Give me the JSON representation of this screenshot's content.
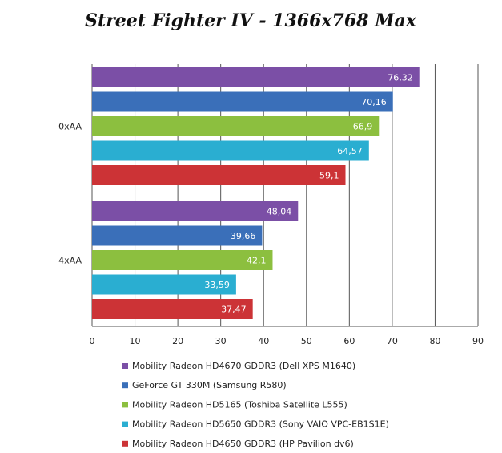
{
  "chart_data": {
    "type": "bar",
    "orientation": "horizontal",
    "title": "Street Fighter IV - 1366x768 Max",
    "categories": [
      "0xAA",
      "4xAA"
    ],
    "series": [
      {
        "name": "Mobility Radeon HD4670 GDDR3 (Dell XPS M1640)",
        "color": "#7b4fa6",
        "values": [
          76.32,
          48.04
        ],
        "labels": [
          "76,32",
          "48,04"
        ]
      },
      {
        "name": "GeForce GT 330M (Samsung R580)",
        "color": "#3a6fb9",
        "values": [
          70.16,
          39.66
        ],
        "labels": [
          "70,16",
          "39,66"
        ]
      },
      {
        "name": "Mobility Radeon HD5165 (Toshiba Satellite L555)",
        "color": "#8cbf3f",
        "values": [
          66.9,
          42.1
        ],
        "labels": [
          "66,9",
          "42,1"
        ]
      },
      {
        "name": "Mobility Radeon HD5650 GDDR3 (Sony VAIO VPC-EB1S1E)",
        "color": "#2aaed1",
        "values": [
          64.57,
          33.59
        ],
        "labels": [
          "64,57",
          "33,59"
        ]
      },
      {
        "name": "Mobility Radeon HD4650 GDDR3 (HP Pavilion dv6)",
        "color": "#cc3336",
        "values": [
          59.1,
          37.47
        ],
        "labels": [
          "59,1",
          "37,47"
        ]
      }
    ],
    "xlim": [
      0,
      90
    ],
    "xticks": [
      0,
      10,
      20,
      30,
      40,
      50,
      60,
      70,
      80,
      90
    ],
    "grid": true,
    "legend_position": "bottom"
  }
}
